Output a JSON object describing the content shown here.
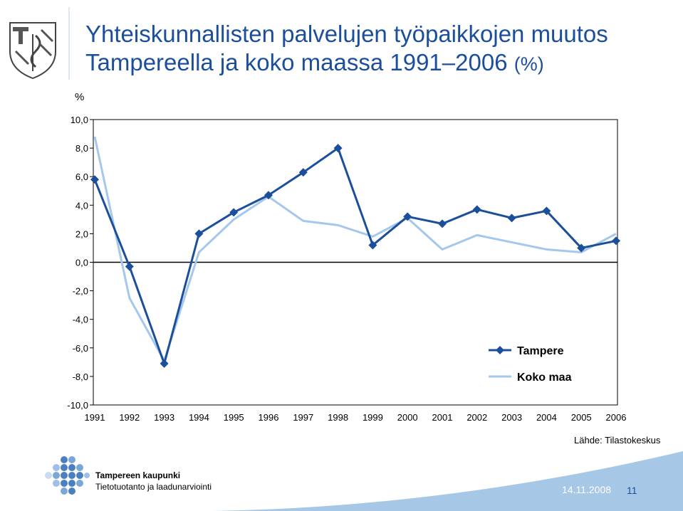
{
  "slide": {
    "title_main": "Yhteiskunnallisten palvelujen työpaikkojen muutos",
    "title_line2": "Tampereella ja koko maassa 1991–2006",
    "title_unit": "(%)",
    "source": "Lähde: Tilastokeskus",
    "org_name": "Tampereen kaupunki",
    "org_unit": "Tietotuotanto ja laadunarviointi",
    "date": "14.11.2008",
    "page_number": "11"
  },
  "colors": {
    "title": "#1b4f9c",
    "tampere": "#1b4f9c",
    "koko_maa": "#a4c8ec",
    "footer_band": "#a7c7e6"
  },
  "chart_data": {
    "type": "line",
    "ylabel": "%",
    "xlabel": "",
    "ylim": [
      -10,
      10
    ],
    "y_ticks": [
      "10,0",
      "8,0",
      "6,0",
      "4,0",
      "2,0",
      "0,0",
      "-2,0",
      "-4,0",
      "-6,0",
      "-8,0",
      "-10,0"
    ],
    "x": [
      "1991",
      "1992",
      "1993",
      "1994",
      "1995",
      "1996",
      "1997",
      "1998",
      "1999",
      "2000",
      "2001",
      "2002",
      "2003",
      "2004",
      "2005",
      "2006"
    ],
    "legend_position": "bottom-right",
    "grid": false,
    "series": [
      {
        "name": "Tampere",
        "marker": "diamond",
        "values": [
          5.8,
          -0.3,
          -7.1,
          2.0,
          3.5,
          4.7,
          6.3,
          8.0,
          1.2,
          3.2,
          2.7,
          3.7,
          3.1,
          3.6,
          1.0,
          1.5
        ]
      },
      {
        "name": "Koko maa",
        "marker": "none",
        "values": [
          8.8,
          -2.5,
          -6.9,
          0.7,
          3.0,
          4.6,
          2.9,
          2.6,
          1.8,
          3.1,
          0.9,
          1.9,
          1.4,
          0.9,
          0.7,
          2.0
        ]
      }
    ]
  }
}
